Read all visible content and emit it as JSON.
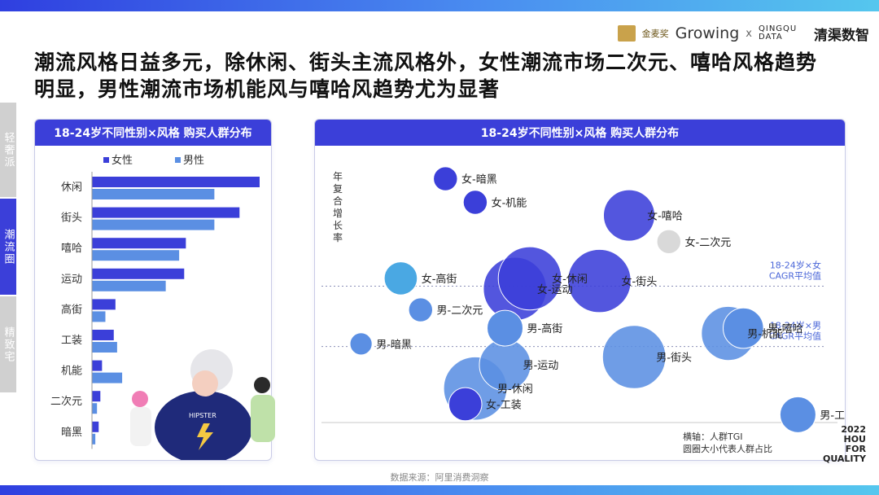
{
  "header": {
    "logo_jinmaijiang": "金麦奖",
    "logo_growing": "Growing",
    "logo_cross": "x",
    "logo_qq_en": "QINGQU DATA",
    "logo_qq_cn": "清渠数智"
  },
  "title": "潮流风格日益多元，除休闲、街头主流风格外，女性潮流市场二次元、嘻哈风格趋势明显，男性潮流市场机能风与嘻哈风趋势尤为显著",
  "side_tabs": [
    "轻奢派",
    "潮流圈",
    "精致宅"
  ],
  "side_tab_active": 1,
  "colors": {
    "female": "#3b3fd9",
    "male": "#5b8fe3",
    "accent": "#3b3fd9",
    "inactive_tab": "#d0d0d0",
    "active_tab": "#3b3fd9"
  },
  "left_panel": {
    "title": "18-24岁不同性别×风格 购买人群分布"
  },
  "right_panel": {
    "title": "18-24岁不同性别×风格 购买人群分布"
  },
  "source": "数据来源：阿里消费洞察",
  "footer_brand": [
    "2022",
    "HOU",
    "FOR",
    "QUALITY"
  ],
  "chart_data": [
    {
      "type": "bar",
      "orientation": "horizontal",
      "title": "18-24岁不同性别×风格 购买人群分布",
      "categories": [
        "休闲",
        "街头",
        "嘻哈",
        "运动",
        "高街",
        "工装",
        "机能",
        "二次元",
        "暗黑"
      ],
      "series": [
        {
          "name": "女性",
          "values": [
            100,
            88,
            56,
            55,
            14,
            13,
            6,
            5,
            4
          ]
        },
        {
          "name": "男性",
          "values": [
            73,
            73,
            52,
            44,
            8,
            15,
            18,
            3,
            2
          ]
        }
      ],
      "legend": "top",
      "grid": false
    },
    {
      "type": "scatter",
      "bubble": true,
      "title": "18-24岁不同性别×风格 购买人群分布",
      "ylabel": "年复合增长率",
      "footnote": [
        "横轴：人群TGI",
        "圆圈大小代表人群占比"
      ],
      "reference_lines": [
        {
          "label": "18-24岁×女CAGR平均值",
          "y": 0.52
        },
        {
          "label": "18-24岁×男CAGR平均值",
          "y": 0.29
        }
      ],
      "xlim": [
        0,
        1
      ],
      "ylim": [
        0,
        1
      ],
      "points": [
        {
          "label": "女-暗黑",
          "gender": "女",
          "x": 0.23,
          "y": 0.93,
          "size": 0.12
        },
        {
          "label": "女-机能",
          "gender": "女",
          "x": 0.29,
          "y": 0.84,
          "size": 0.12
        },
        {
          "label": "女-嘻哈",
          "gender": "女",
          "x": 0.6,
          "y": 0.79,
          "size": 0.42
        },
        {
          "label": "女-二次元",
          "gender": "女",
          "x": 0.68,
          "y": 0.69,
          "size": 0.12
        },
        {
          "label": "女-高街",
          "gender": "女",
          "x": 0.14,
          "y": 0.55,
          "size": 0.22
        },
        {
          "label": "女-运动",
          "gender": "女",
          "x": 0.37,
          "y": 0.51,
          "size": 0.55
        },
        {
          "label": "女-休闲",
          "gender": "女",
          "x": 0.4,
          "y": 0.55,
          "size": 0.55
        },
        {
          "label": "女-街头",
          "gender": "女",
          "x": 0.54,
          "y": 0.54,
          "size": 0.55
        },
        {
          "label": "女-工装",
          "gender": "女",
          "x": 0.27,
          "y": 0.07,
          "size": 0.22
        },
        {
          "label": "男-二次元",
          "gender": "男",
          "x": 0.18,
          "y": 0.43,
          "size": 0.12
        },
        {
          "label": "男-高街",
          "gender": "男",
          "x": 0.35,
          "y": 0.36,
          "size": 0.25
        },
        {
          "label": "男-暗黑",
          "gender": "男",
          "x": 0.06,
          "y": 0.3,
          "size": 0.1
        },
        {
          "label": "男-机能",
          "gender": "男",
          "x": 0.8,
          "y": 0.34,
          "size": 0.45
        },
        {
          "label": "男-嘻哈",
          "gender": "男",
          "x": 0.83,
          "y": 0.36,
          "size": 0.3
        },
        {
          "label": "男-街头",
          "gender": "男",
          "x": 0.61,
          "y": 0.25,
          "size": 0.55
        },
        {
          "label": "男-运动",
          "gender": "男",
          "x": 0.35,
          "y": 0.22,
          "size": 0.42
        },
        {
          "label": "男-休闲",
          "gender": "男",
          "x": 0.29,
          "y": 0.13,
          "size": 0.55
        },
        {
          "label": "男-工装",
          "gender": "男",
          "x": 0.94,
          "y": 0.03,
          "size": 0.25
        }
      ]
    }
  ]
}
